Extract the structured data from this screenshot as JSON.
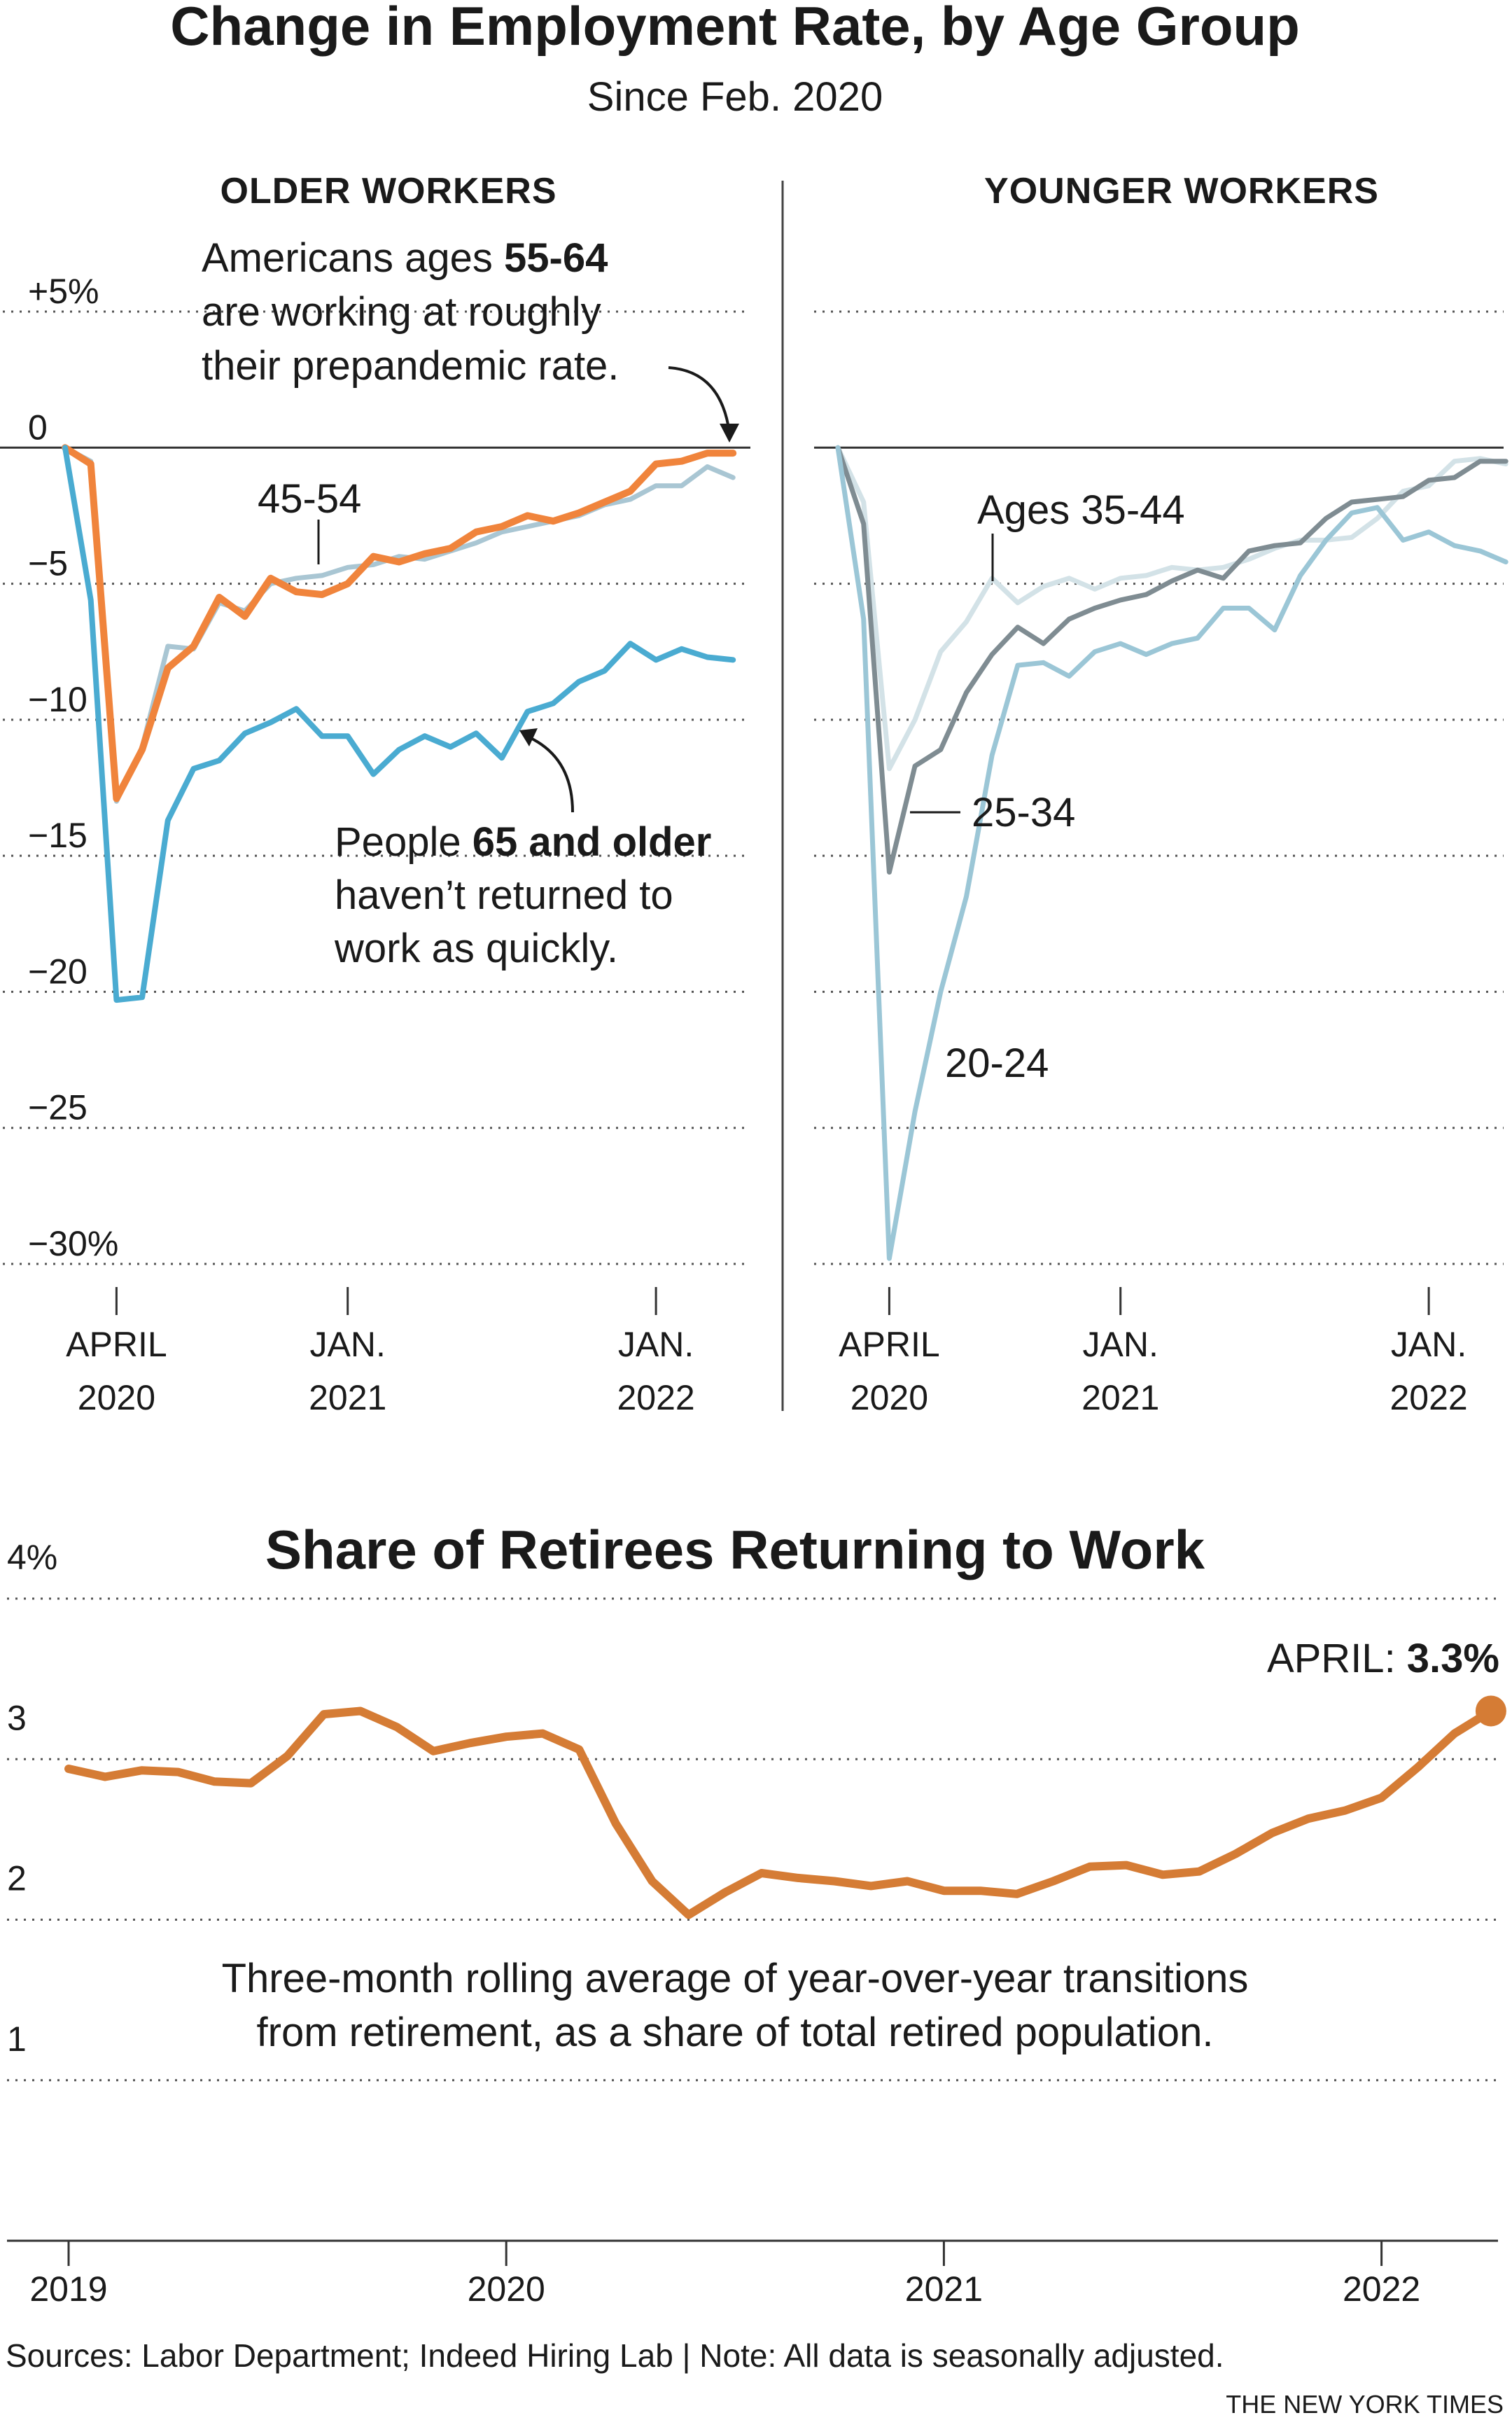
{
  "title": "Change in Employment Rate, by Age Group",
  "subtitle": "Since Feb. 2020",
  "source": "Sources: Labor Department; Indeed Hiring Lab | Note: All data is seasonally adjusted.",
  "credit": "THE NEW YORK TIMES",
  "colors": {
    "age_55_64": "#f0843c",
    "age_45_54": "#a9c6d3",
    "age_65_plus": "#4aabd1",
    "age_35_44": "#d3e2e7",
    "age_25_34": "#7f8c92",
    "age_20_24": "#9bc6d6",
    "retirees": "#d57c35"
  },
  "chart_data": [
    {
      "type": "line",
      "panel": "OLDER WORKERS",
      "y_unit": "percent",
      "y_tick_labels": [
        "+5%",
        "0",
        "−5",
        "−10",
        "−15",
        "−20",
        "−25",
        "−30%"
      ],
      "y_ticks": [
        5,
        0,
        -5,
        -10,
        -15,
        -20,
        -25,
        -30
      ],
      "ylim": [
        -30,
        5
      ],
      "x_ticks": [
        {
          "date": "2020-04",
          "line1": "APRIL",
          "line2": "2020"
        },
        {
          "date": "2021-01",
          "line1": "JAN.",
          "line2": "2021"
        },
        {
          "date": "2022-01",
          "line1": "JAN.",
          "line2": "2022"
        }
      ],
      "x": [
        "2020-02",
        "2020-03",
        "2020-04",
        "2020-05",
        "2020-06",
        "2020-07",
        "2020-08",
        "2020-09",
        "2020-10",
        "2020-11",
        "2020-12",
        "2021-01",
        "2021-02",
        "2021-03",
        "2021-04",
        "2021-05",
        "2021-06",
        "2021-07",
        "2021-08",
        "2021-09",
        "2021-10",
        "2021-11",
        "2021-12",
        "2022-01",
        "2022-02",
        "2022-03",
        "2022-04"
      ],
      "series": [
        {
          "name": "45-54",
          "color_key": "age_45_54",
          "width": 7,
          "values": [
            0,
            -0.5,
            -13,
            -11,
            -7.3,
            -7.4,
            -5.7,
            -6,
            -5,
            -4.8,
            -4.7,
            -4.4,
            -4.3,
            -4,
            -4.1,
            -3.8,
            -3.5,
            -3.1,
            -2.9,
            -2.7,
            -2.5,
            -2.1,
            -1.9,
            -1.4,
            -1.4,
            -0.7,
            -1.1
          ]
        },
        {
          "name": "55-64",
          "color_key": "age_55_64",
          "width": 10,
          "values": [
            0,
            -0.6,
            -12.9,
            -11.1,
            -8.1,
            -7.3,
            -5.5,
            -6.2,
            -4.8,
            -5.3,
            -5.4,
            -5,
            -4,
            -4.2,
            -3.9,
            -3.7,
            -3.1,
            -2.9,
            -2.5,
            -2.7,
            -2.4,
            -2,
            -1.6,
            -0.6,
            -0.5,
            -0.2,
            -0.2
          ]
        },
        {
          "name": "65 and older",
          "color_key": "age_65_plus",
          "width": 8,
          "values": [
            0,
            -5.6,
            -20.3,
            -20.2,
            -13.7,
            -11.8,
            -11.5,
            -10.5,
            -10.1,
            -9.6,
            -10.6,
            -10.6,
            -12,
            -11.1,
            -10.6,
            -11,
            -10.5,
            -11.4,
            -9.7,
            -9.4,
            -8.6,
            -8.2,
            -7.2,
            -7.8,
            -7.4,
            -7.7,
            -7.8
          ]
        }
      ],
      "annotations": [
        {
          "target": "55-64",
          "lines": [
            [
              "Americans ages ",
              "55-64"
            ],
            [
              "are working at roughly",
              ""
            ],
            [
              "their prepandemic rate.",
              ""
            ]
          ]
        },
        {
          "target": "45-54",
          "lines": [
            [
              "45-54",
              ""
            ]
          ]
        },
        {
          "target": "65 and older",
          "lines": [
            [
              "People ",
              "65 and older"
            ],
            [
              "haven’t returned to",
              ""
            ],
            [
              "work as quickly.",
              ""
            ]
          ]
        }
      ]
    },
    {
      "type": "line",
      "panel": "YOUNGER WORKERS",
      "y_unit": "percent",
      "ylim": [
        -30,
        5
      ],
      "y_ticks": [
        5,
        0,
        -5,
        -10,
        -15,
        -20,
        -25,
        -30
      ],
      "x_ticks": [
        {
          "date": "2020-04",
          "line1": "APRIL",
          "line2": "2020"
        },
        {
          "date": "2021-01",
          "line1": "JAN.",
          "line2": "2021"
        },
        {
          "date": "2022-01",
          "line1": "JAN.",
          "line2": "2022"
        }
      ],
      "x": [
        "2020-02",
        "2020-03",
        "2020-04",
        "2020-05",
        "2020-06",
        "2020-07",
        "2020-08",
        "2020-09",
        "2020-10",
        "2020-11",
        "2020-12",
        "2021-01",
        "2021-02",
        "2021-03",
        "2021-04",
        "2021-05",
        "2021-06",
        "2021-07",
        "2021-08",
        "2021-09",
        "2021-10",
        "2021-11",
        "2021-12",
        "2022-01",
        "2022-02",
        "2022-03",
        "2022-04"
      ],
      "series": [
        {
          "name": "35-44",
          "color_key": "age_35_44",
          "width": 7,
          "values": [
            0,
            -2,
            -11.8,
            -10,
            -7.5,
            -6.4,
            -4.8,
            -5.7,
            -5.1,
            -4.8,
            -5.2,
            -4.8,
            -4.7,
            -4.4,
            -4.5,
            -4.4,
            -4.1,
            -3.7,
            -3.4,
            -3.4,
            -3.3,
            -2.6,
            -1.6,
            -1.4,
            -0.5,
            -0.4,
            -0.6
          ]
        },
        {
          "name": "25-34",
          "color_key": "age_25_34",
          "width": 7,
          "values": [
            0,
            -2.8,
            -15.6,
            -11.7,
            -11.1,
            -9,
            -7.6,
            -6.6,
            -7.2,
            -6.3,
            -5.9,
            -5.6,
            -5.4,
            -4.9,
            -4.5,
            -4.8,
            -3.8,
            -3.6,
            -3.5,
            -2.6,
            -2,
            -1.9,
            -1.8,
            -1.2,
            -1.1,
            -0.5,
            -0.5
          ]
        },
        {
          "name": "20-24",
          "color_key": "age_20_24",
          "width": 7,
          "values": [
            0,
            -6.3,
            -29.8,
            -24.4,
            -20,
            -16.5,
            -11.3,
            -8,
            -7.9,
            -8.4,
            -7.5,
            -7.2,
            -7.6,
            -7.2,
            -7,
            -5.9,
            -5.9,
            -6.7,
            -4.7,
            -3.4,
            -2.4,
            -2.2,
            -3.4,
            -3.1,
            -3.6,
            -3.8,
            -4.2
          ]
        }
      ],
      "annotations": [
        {
          "target": "35-44",
          "lines": [
            [
              "Ages 35-44",
              ""
            ]
          ]
        },
        {
          "target": "25-34",
          "lines": [
            [
              "25-34",
              ""
            ]
          ]
        },
        {
          "target": "20-24",
          "lines": [
            [
              "20-24",
              ""
            ]
          ]
        }
      ]
    },
    {
      "type": "line",
      "title": "Share of Retirees Returning to Work",
      "y_unit": "percent",
      "y_tick_labels": [
        "4%",
        "3",
        "2",
        "1"
      ],
      "y_ticks": [
        4,
        3,
        2,
        1
      ],
      "ylim": [
        0,
        4
      ],
      "x_tick_labels": [
        "2019",
        "2020",
        "2021",
        "2022"
      ],
      "xlim": [
        "2019-01",
        "2022-04"
      ],
      "x": [
        "2019-01",
        "2019-02",
        "2019-03",
        "2019-04",
        "2019-05",
        "2019-06",
        "2019-07",
        "2019-08",
        "2019-09",
        "2019-10",
        "2019-11",
        "2019-12",
        "2020-01",
        "2020-02",
        "2020-03",
        "2020-04",
        "2020-05",
        "2020-06",
        "2020-07",
        "2020-08",
        "2020-09",
        "2020-10",
        "2020-11",
        "2020-12",
        "2021-01",
        "2021-02",
        "2021-03",
        "2021-04",
        "2021-05",
        "2021-06",
        "2021-07",
        "2021-08",
        "2021-09",
        "2021-10",
        "2021-11",
        "2021-12",
        "2022-01",
        "2022-02",
        "2022-03",
        "2022-04"
      ],
      "series": [
        {
          "name": "Share of retirees returning to work",
          "color_key": "retirees",
          "width": 12,
          "values": [
            2.94,
            2.89,
            2.93,
            2.92,
            2.86,
            2.85,
            3.02,
            3.28,
            3.3,
            3.2,
            3.05,
            3.1,
            3.14,
            3.16,
            3.06,
            2.6,
            2.24,
            2.03,
            2.17,
            2.29,
            2.26,
            2.24,
            2.21,
            2.24,
            2.18,
            2.18,
            2.16,
            2.24,
            2.33,
            2.34,
            2.28,
            2.3,
            2.41,
            2.54,
            2.63,
            2.68,
            2.76,
            2.95,
            3.16,
            3.3
          ]
        }
      ],
      "endpoint_label": {
        "prefix": "APRIL: ",
        "value": "3.3%"
      },
      "note_lines": [
        "Three-month rolling average of year-over-year transitions",
        "from retirement, as a share of total retired population."
      ]
    }
  ]
}
